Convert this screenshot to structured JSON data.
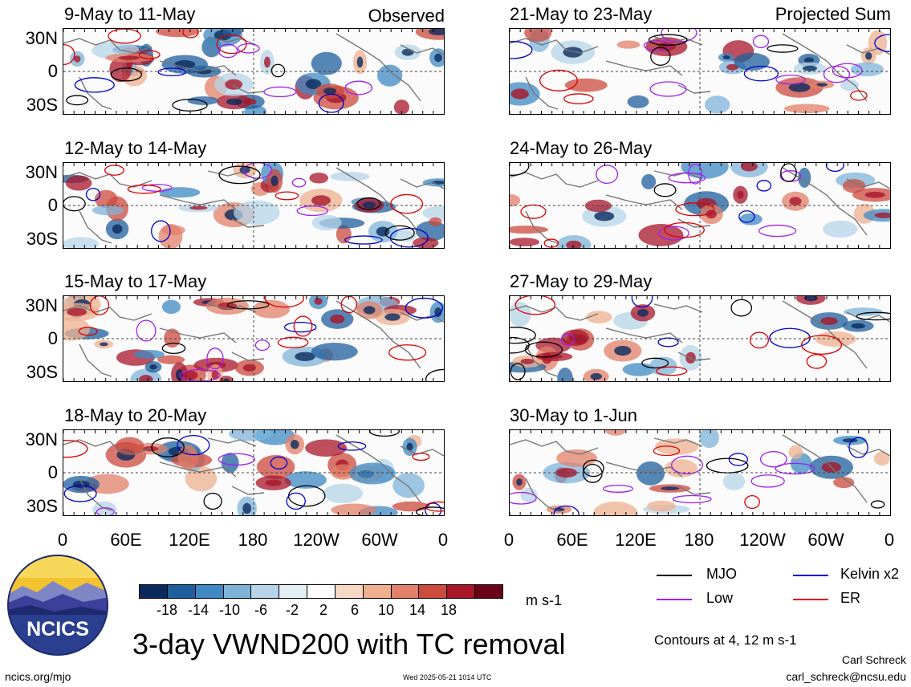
{
  "header": {
    "observed_label": "Observed",
    "projected_label": "Projected Sum"
  },
  "panels_left": [
    {
      "title": "9-May to 11-May"
    },
    {
      "title": "12-May to 14-May"
    },
    {
      "title": "15-May to 17-May"
    },
    {
      "title": "18-May to 20-May"
    }
  ],
  "panels_right": [
    {
      "title": "21-May to 23-May"
    },
    {
      "title": "24-May to 26-May"
    },
    {
      "title": "27-May to 29-May"
    },
    {
      "title": "30-May to 1-Jun"
    }
  ],
  "axes": {
    "lat_labels": [
      "30N",
      "0",
      "30S"
    ],
    "lon_labels": [
      "0",
      "60E",
      "120E",
      "180",
      "120W",
      "60W",
      "0"
    ]
  },
  "colorbar": {
    "tick_labels": [
      "-18",
      "-14",
      "-10",
      "-6",
      "-2",
      "2",
      "6",
      "10",
      "14",
      "18"
    ],
    "unit": "m s-1",
    "colors": [
      "#0a2a5e",
      "#1f5f9e",
      "#3f8ac4",
      "#7fb4d9",
      "#b5d4e8",
      "#e3eef5",
      "#fbfbfb",
      "#f6d8c5",
      "#efb090",
      "#e2806a",
      "#cc4a3e",
      "#a8162a",
      "#6a0318"
    ]
  },
  "legend": {
    "items": [
      {
        "label": "MJO",
        "color": "#000000"
      },
      {
        "label": "Kelvin x2",
        "color": "#0000cc"
      },
      {
        "label": "Low",
        "color": "#a020f0"
      },
      {
        "label": "ER",
        "color": "#dd0000"
      }
    ],
    "contours_note": "Contours at 4, 12 m s-1"
  },
  "footer": {
    "main_title": "3-day VWND200 with TC removal",
    "logo_text": "NCICS",
    "site": "ncics.org/mjo",
    "timestamp": "Wed 2025-05-21 1014 UTC",
    "author": "Carl Schreck",
    "email": "carl_schreck@ncsu.edu"
  }
}
